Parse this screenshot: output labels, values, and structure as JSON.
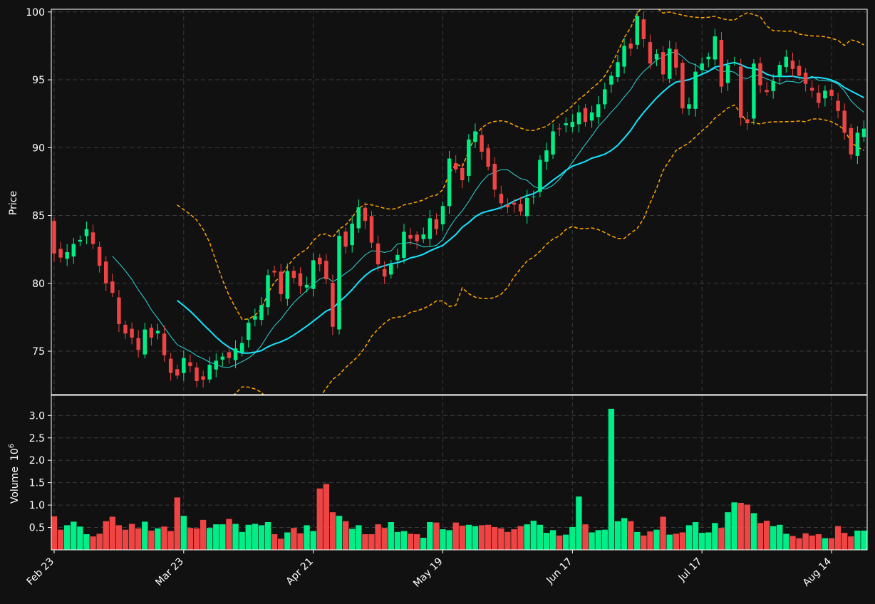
{
  "colors": {
    "background": "#111111",
    "up": "#00ee88",
    "down": "#ee4444",
    "ma_fast": "#2fd6d6",
    "ma_slow": "#16e4ff",
    "bollinger": "#ffa500",
    "axis": "#ffffff",
    "grid": "#3a3a3a"
  },
  "chart_data": {
    "type": "candlestick",
    "grid": true,
    "price_panel": {
      "ylabel": "Price",
      "ylim": [
        71.8,
        100.2
      ],
      "yticks": [
        75,
        80,
        85,
        90,
        95,
        100
      ],
      "ytick_labels": [
        "75",
        "80",
        "85",
        "90",
        "95",
        "100"
      ]
    },
    "volume_panel": {
      "ylabel": "Volume",
      "ylabel_exponent": "10",
      "ylabel_power": "6",
      "ylim": [
        0.0,
        3.45
      ],
      "yticks": [
        0.5,
        1.0,
        1.5,
        2.0,
        2.5,
        3.0
      ],
      "ytick_labels": [
        "0.5",
        "1.0",
        "1.5",
        "2.0",
        "2.5",
        "3.0"
      ]
    },
    "xtick_labels": [
      {
        "index": 0,
        "label": "Feb 23"
      },
      {
        "index": 20,
        "label": "Mar 23"
      },
      {
        "index": 40,
        "label": "Apr 21"
      },
      {
        "index": 60,
        "label": "May 19"
      },
      {
        "index": 80,
        "label": "Jun 17"
      },
      {
        "index": 100,
        "label": "Jul 17"
      },
      {
        "index": 120,
        "label": "Aug 14"
      }
    ],
    "closes": [
      82.2,
      81.9,
      82.3,
      82.9,
      83.2,
      84.0,
      82.9,
      81.3,
      80.0,
      79.3,
      77.0,
      76.3,
      76.0,
      75.1,
      76.6,
      76.0,
      76.5,
      74.7,
      73.4,
      73.2,
      74.5,
      73.9,
      72.8,
      72.9,
      74.0,
      74.3,
      74.6,
      74.5,
      75.2,
      75.6,
      77.1,
      77.6,
      78.4,
      80.6,
      80.8,
      79.2,
      80.9,
      80.4,
      79.8,
      79.9,
      81.7,
      81.4,
      80.3,
      76.8,
      83.5,
      82.7,
      84.4,
      85.6,
      84.6,
      83.0,
      81.4,
      80.5,
      81.4,
      82.1,
      83.8,
      83.3,
      83.1,
      83.6,
      84.8,
      84.0,
      85.7,
      89.2,
      88.4,
      87.6,
      90.6,
      91.2,
      89.7,
      88.6,
      86.9,
      85.9,
      85.6,
      85.8,
      85.3,
      86.3,
      86.4,
      89.1,
      89.8,
      91.2,
      91.4,
      91.8,
      91.9,
      92.6,
      91.9,
      92.6,
      93.2,
      94.3,
      95.3,
      96.3,
      97.5,
      97.3,
      99.7,
      98.0,
      96.2,
      96.9,
      95.4,
      97.3,
      95.9,
      92.9,
      93.2,
      95.6,
      96.2,
      96.7,
      98.2,
      94.5,
      96.1,
      96.3,
      92.2,
      91.8,
      96.2,
      94.6,
      94.1,
      94.9,
      96.1,
      96.7,
      95.8,
      95.3,
      94.7,
      94.2,
      93.3,
      94.2,
      93.8,
      92.7,
      91.1,
      89.5,
      91.1,
      91.4
    ],
    "volumes": [
      0.75,
      0.45,
      0.55,
      0.63,
      0.52,
      0.35,
      0.3,
      0.36,
      0.64,
      0.74,
      0.55,
      0.45,
      0.58,
      0.48,
      0.63,
      0.43,
      0.48,
      0.52,
      0.42,
      1.17,
      0.76,
      0.49,
      0.48,
      0.67,
      0.49,
      0.57,
      0.57,
      0.69,
      0.58,
      0.4,
      0.56,
      0.58,
      0.55,
      0.62,
      0.35,
      0.25,
      0.39,
      0.49,
      0.37,
      0.55,
      0.42,
      1.37,
      1.47,
      0.84,
      0.76,
      0.64,
      0.47,
      0.55,
      0.35,
      0.35,
      0.57,
      0.49,
      0.62,
      0.4,
      0.42,
      0.36,
      0.35,
      0.27,
      0.62,
      0.61,
      0.46,
      0.44,
      0.61,
      0.54,
      0.56,
      0.53,
      0.55,
      0.56,
      0.51,
      0.48,
      0.4,
      0.46,
      0.53,
      0.57,
      0.65,
      0.56,
      0.38,
      0.44,
      0.32,
      0.34,
      0.51,
      1.19,
      0.57,
      0.39,
      0.44,
      0.45,
      3.15,
      0.64,
      0.71,
      0.64,
      0.4,
      0.32,
      0.41,
      0.45,
      0.74,
      0.34,
      0.36,
      0.39,
      0.55,
      0.62,
      0.38,
      0.39,
      0.6,
      0.49,
      0.84,
      1.06,
      1.05,
      1.01,
      0.82,
      0.6,
      0.65,
      0.53,
      0.56,
      0.36,
      0.31,
      0.26,
      0.37,
      0.32,
      0.35,
      0.26,
      0.26,
      0.53,
      0.38,
      0.3,
      0.43,
      0.43
    ]
  }
}
